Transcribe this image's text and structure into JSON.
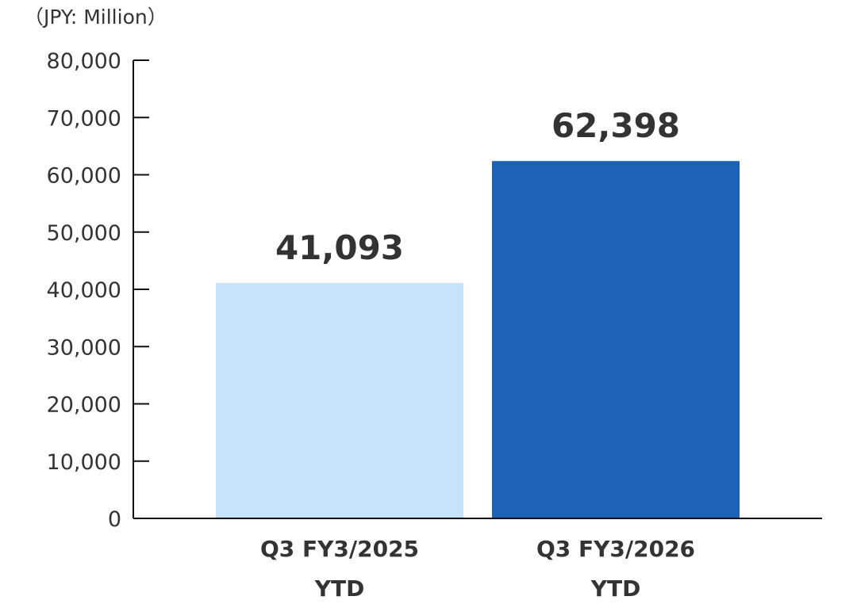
{
  "chart_data": {
    "type": "bar",
    "title": "",
    "unit_label": "（JPY: Million）",
    "xlabel": "",
    "ylabel": "",
    "ylim": [
      0,
      80000
    ],
    "yticks": [
      0,
      10000,
      20000,
      30000,
      40000,
      50000,
      60000,
      70000,
      80000
    ],
    "ytick_labels": [
      "0",
      "10,000",
      "20,000",
      "30,000",
      "40,000",
      "50,000",
      "60,000",
      "70,000",
      "80,000"
    ],
    "grid": false,
    "categories": [
      {
        "line1": "Q3 FY3/2025",
        "line2": "YTD"
      },
      {
        "line1": "Q3 FY3/2026",
        "line2": "YTD"
      }
    ],
    "values": [
      41093,
      62398
    ],
    "data_labels": [
      "41,093",
      "62,398"
    ],
    "colors": [
      "#c5e4fc",
      "#1c63b7"
    ]
  }
}
